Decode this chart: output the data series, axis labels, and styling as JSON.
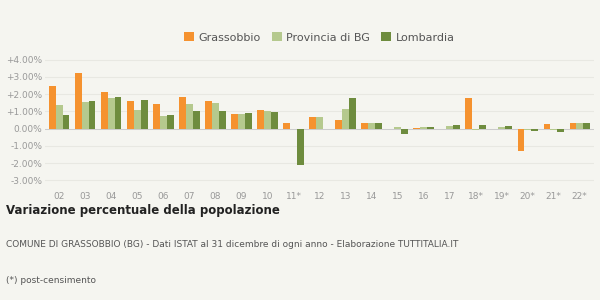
{
  "categories": [
    "02",
    "03",
    "04",
    "05",
    "06",
    "07",
    "08",
    "09",
    "10",
    "11*",
    "12",
    "13",
    "14",
    "15",
    "16",
    "17",
    "18*",
    "19*",
    "20*",
    "21*",
    "22*"
  ],
  "grassobbio": [
    2.5,
    3.2,
    2.1,
    1.6,
    1.4,
    1.85,
    1.6,
    0.85,
    1.1,
    0.3,
    0.65,
    0.5,
    0.35,
    -0.05,
    0.05,
    -0.05,
    1.8,
    0.0,
    -1.3,
    0.25,
    0.35
  ],
  "provincia_bg": [
    1.35,
    1.55,
    1.75,
    1.1,
    0.75,
    1.4,
    1.5,
    0.85,
    1.05,
    -0.05,
    0.7,
    1.15,
    0.35,
    0.1,
    0.1,
    0.15,
    -0.1,
    0.1,
    -0.1,
    -0.1,
    0.35
  ],
  "lombardia": [
    0.8,
    1.6,
    1.85,
    1.65,
    0.8,
    1.0,
    1.05,
    0.9,
    0.95,
    -2.1,
    -0.05,
    1.8,
    0.3,
    -0.3,
    0.1,
    0.2,
    0.2,
    0.15,
    -0.15,
    -0.2,
    0.35
  ],
  "grassobbio_color": "#f5922f",
  "provincia_bg_color": "#b5c98e",
  "lombardia_color": "#6e8c3e",
  "title": "Variazione percentuale della popolazione",
  "subtitle": "COMUNE DI GRASSOBBIO (BG) - Dati ISTAT al 31 dicembre di ogni anno - Elaborazione TUTTITALIA.IT",
  "footnote": "(*) post-censimento",
  "ylim": [
    -3.5,
    4.5
  ],
  "yticks": [
    -3.0,
    -2.0,
    -1.0,
    0.0,
    1.0,
    2.0,
    3.0,
    4.0
  ],
  "ytick_labels": [
    "-3.00%",
    "-2.00%",
    "-1.00%",
    "0.00%",
    "+1.00%",
    "+2.00%",
    "+3.00%",
    "+4.00%"
  ],
  "bg_color": "#f5f5f0",
  "grid_color": "#e8e8e2",
  "bar_width": 0.26,
  "legend_fontsize": 8,
  "tick_fontsize": 6.5,
  "title_fontsize": 8.5,
  "subtitle_fontsize": 6.5
}
